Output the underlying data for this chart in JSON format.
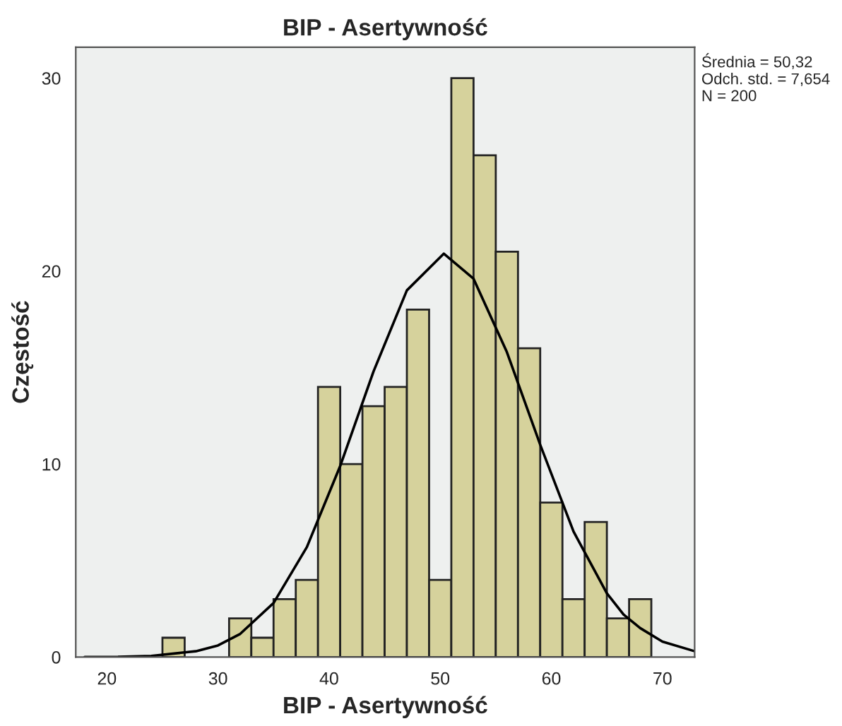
{
  "chart_data": {
    "type": "histogram",
    "title": "BIP - Asertywność",
    "xlabel": "BIP - Asertywność",
    "ylabel": "Częstość",
    "bins": [
      25,
      27,
      29,
      31,
      33,
      35,
      37,
      39,
      41,
      43,
      45,
      47,
      49,
      51,
      53,
      55,
      57,
      59,
      61,
      63,
      65,
      67,
      69
    ],
    "values": [
      1,
      0,
      0,
      2,
      1,
      3,
      4,
      14,
      10,
      13,
      14,
      18,
      4,
      30,
      26,
      21,
      16,
      8,
      3,
      7,
      2,
      3
    ],
    "color": "#d6d29c",
    "series": [
      {
        "type": "line",
        "color": "#000000",
        "x": [
          18,
          21,
          24,
          28,
          30,
          32,
          35,
          38,
          41,
          44,
          47,
          50.32,
          53,
          56,
          59,
          62,
          65,
          66.5,
          68,
          70,
          72.9
        ],
        "values": [
          0.0,
          0.01,
          0.06,
          0.3,
          0.6,
          1.2,
          2.8,
          5.7,
          9.9,
          14.8,
          19.0,
          20.9,
          19.6,
          15.8,
          11.0,
          6.5,
          3.3,
          2.2,
          1.5,
          0.8,
          0.3
        ]
      }
    ],
    "xlim": [
      17.2,
      72.9
    ],
    "ylim": [
      0,
      31.6
    ],
    "xticks": [
      20,
      30,
      40,
      50,
      60,
      70
    ],
    "yticks": [
      0,
      10,
      20,
      30
    ],
    "grid": false,
    "annotations": [
      "Średnia = 50,32\nOdch. std. = 7,654\nN = 200"
    ]
  }
}
